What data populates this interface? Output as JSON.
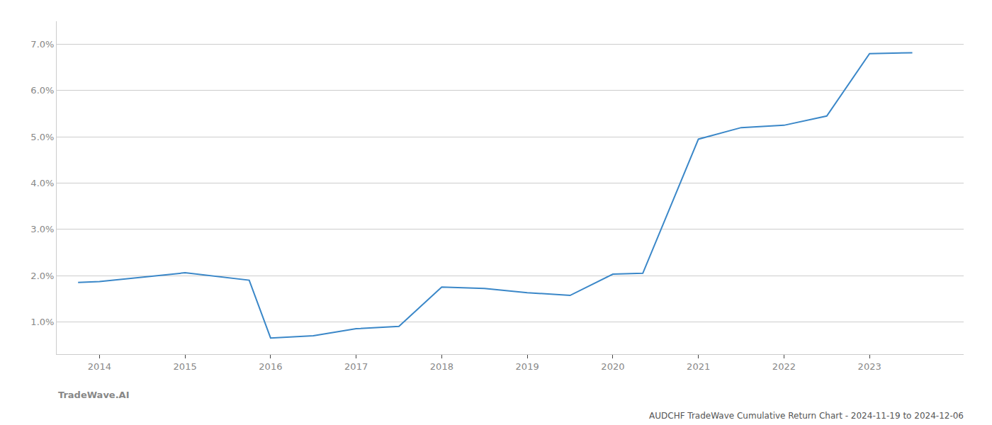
{
  "chart_data": {
    "type": "line",
    "title": "AUDCHF TradeWave Cumulative Return Chart - 2024-11-19 to 2024-12-06",
    "annotations": [
      "TradeWave.AI"
    ],
    "x": [
      2013.75,
      2014.0,
      2015.0,
      2015.75,
      2016.0,
      2016.5,
      2017.0,
      2017.5,
      2018.0,
      2018.5,
      2019.0,
      2019.5,
      2020.0,
      2020.35,
      2021.0,
      2021.5,
      2022.0,
      2022.5,
      2023.0,
      2023.5
    ],
    "values": [
      1.85,
      1.87,
      2.06,
      1.9,
      0.65,
      0.7,
      0.85,
      0.9,
      1.75,
      1.72,
      1.63,
      1.57,
      2.03,
      2.05,
      4.95,
      5.2,
      5.25,
      5.45,
      6.8,
      6.82
    ],
    "color": "#3a87c8",
    "xlim": [
      2013.5,
      2024.1
    ],
    "ylim": [
      0.3,
      7.5
    ],
    "xticks": [
      2014,
      2015,
      2016,
      2017,
      2018,
      2019,
      2020,
      2021,
      2022,
      2023
    ],
    "yticks": [
      {
        "value": 1.0,
        "label": "1.0%"
      },
      {
        "value": 2.0,
        "label": "2.0%"
      },
      {
        "value": 3.0,
        "label": "3.0%"
      },
      {
        "value": 4.0,
        "label": "4.0%"
      },
      {
        "value": 5.0,
        "label": "5.0%"
      },
      {
        "value": 6.0,
        "label": "6.0%"
      },
      {
        "value": 7.0,
        "label": "7.0%"
      }
    ],
    "grid": "y"
  }
}
